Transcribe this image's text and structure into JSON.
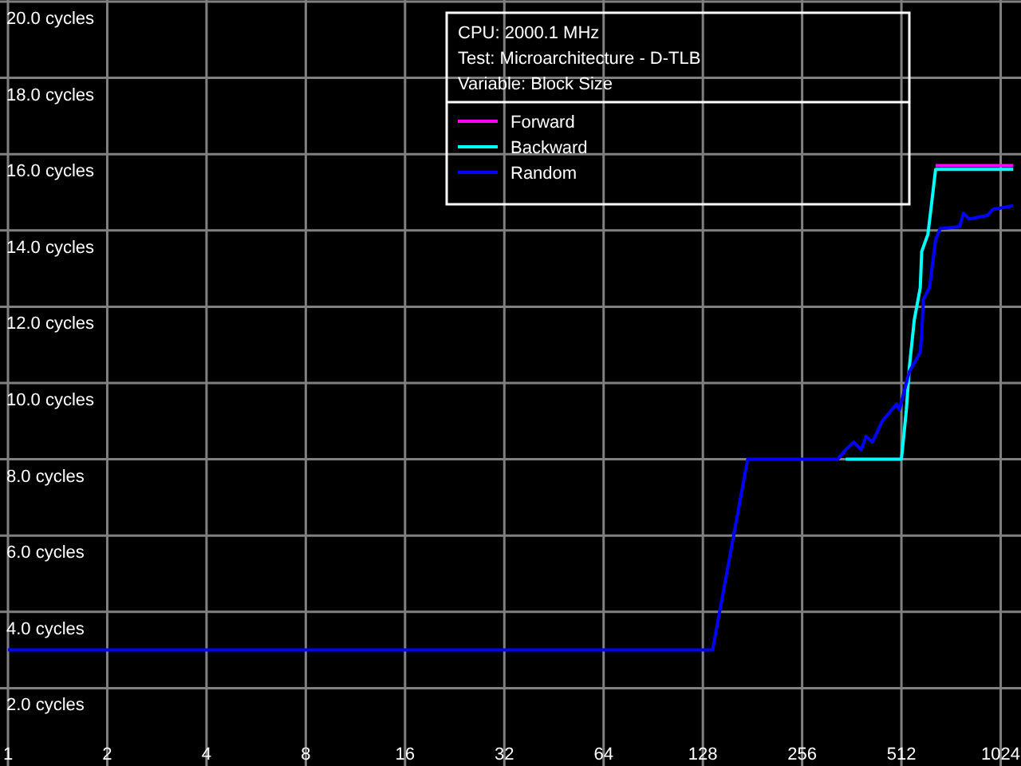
{
  "chart_data": {
    "type": "line",
    "annotations": [
      "CPU: 2000.1 MHz",
      "Test: Microarchitecture - D-TLB",
      "Variable: Block Size"
    ],
    "log": "x",
    "grid": true,
    "legend": "top right",
    "line_style": "solid",
    "marker": "none",
    "xlim": [
      1,
      1180
    ],
    "xticks": [
      1,
      2,
      4,
      8,
      16,
      32,
      64,
      128,
      256,
      512,
      1024
    ],
    "ylim": [
      0,
      20
    ],
    "yticks": [
      {
        "value": 2,
        "label": "2.0 cycles"
      },
      {
        "value": 4,
        "label": "4.0 cycles"
      },
      {
        "value": 6,
        "label": "6.0 cycles"
      },
      {
        "value": 8,
        "label": "8.0 cycles"
      },
      {
        "value": 10,
        "label": "10.0 cycles"
      },
      {
        "value": 12,
        "label": "12.0 cycles"
      },
      {
        "value": 14,
        "label": "14.0 cycles"
      },
      {
        "value": 16,
        "label": "16.0 cycles"
      },
      {
        "value": 18,
        "label": "18.0 cycles"
      },
      {
        "value": 20,
        "label": "20.0 cycles"
      }
    ],
    "series": [
      {
        "name": "Forward",
        "color": "#ff00ff",
        "x": [
          650,
          1118
        ],
        "values": [
          15.7,
          15.7
        ]
      },
      {
        "name": "Backward",
        "color": "#00ffff",
        "x": [
          347,
          512,
          530,
          541,
          560,
          584,
          590,
          616,
          630,
          650,
          1118
        ],
        "values": [
          8.0,
          8.0,
          9.3,
          10.4,
          11.65,
          12.5,
          13.45,
          13.9,
          14.6,
          15.6,
          15.6
        ]
      },
      {
        "name": "Random",
        "color": "#0000ff",
        "x": [
          1,
          137,
          175,
          328,
          347,
          367,
          387,
          400,
          418,
          448,
          495,
          505,
          541,
          584,
          590,
          597,
          623,
          650,
          671,
          769,
          790,
          822,
          937,
          969,
          1118
        ],
        "values": [
          3.0,
          3.0,
          8.0,
          8.0,
          8.25,
          8.45,
          8.25,
          8.6,
          8.45,
          9.0,
          9.45,
          9.3,
          10.3,
          10.8,
          11.3,
          12.2,
          12.5,
          13.75,
          14.05,
          14.1,
          14.45,
          14.3,
          14.4,
          14.55,
          14.65
        ]
      }
    ]
  }
}
